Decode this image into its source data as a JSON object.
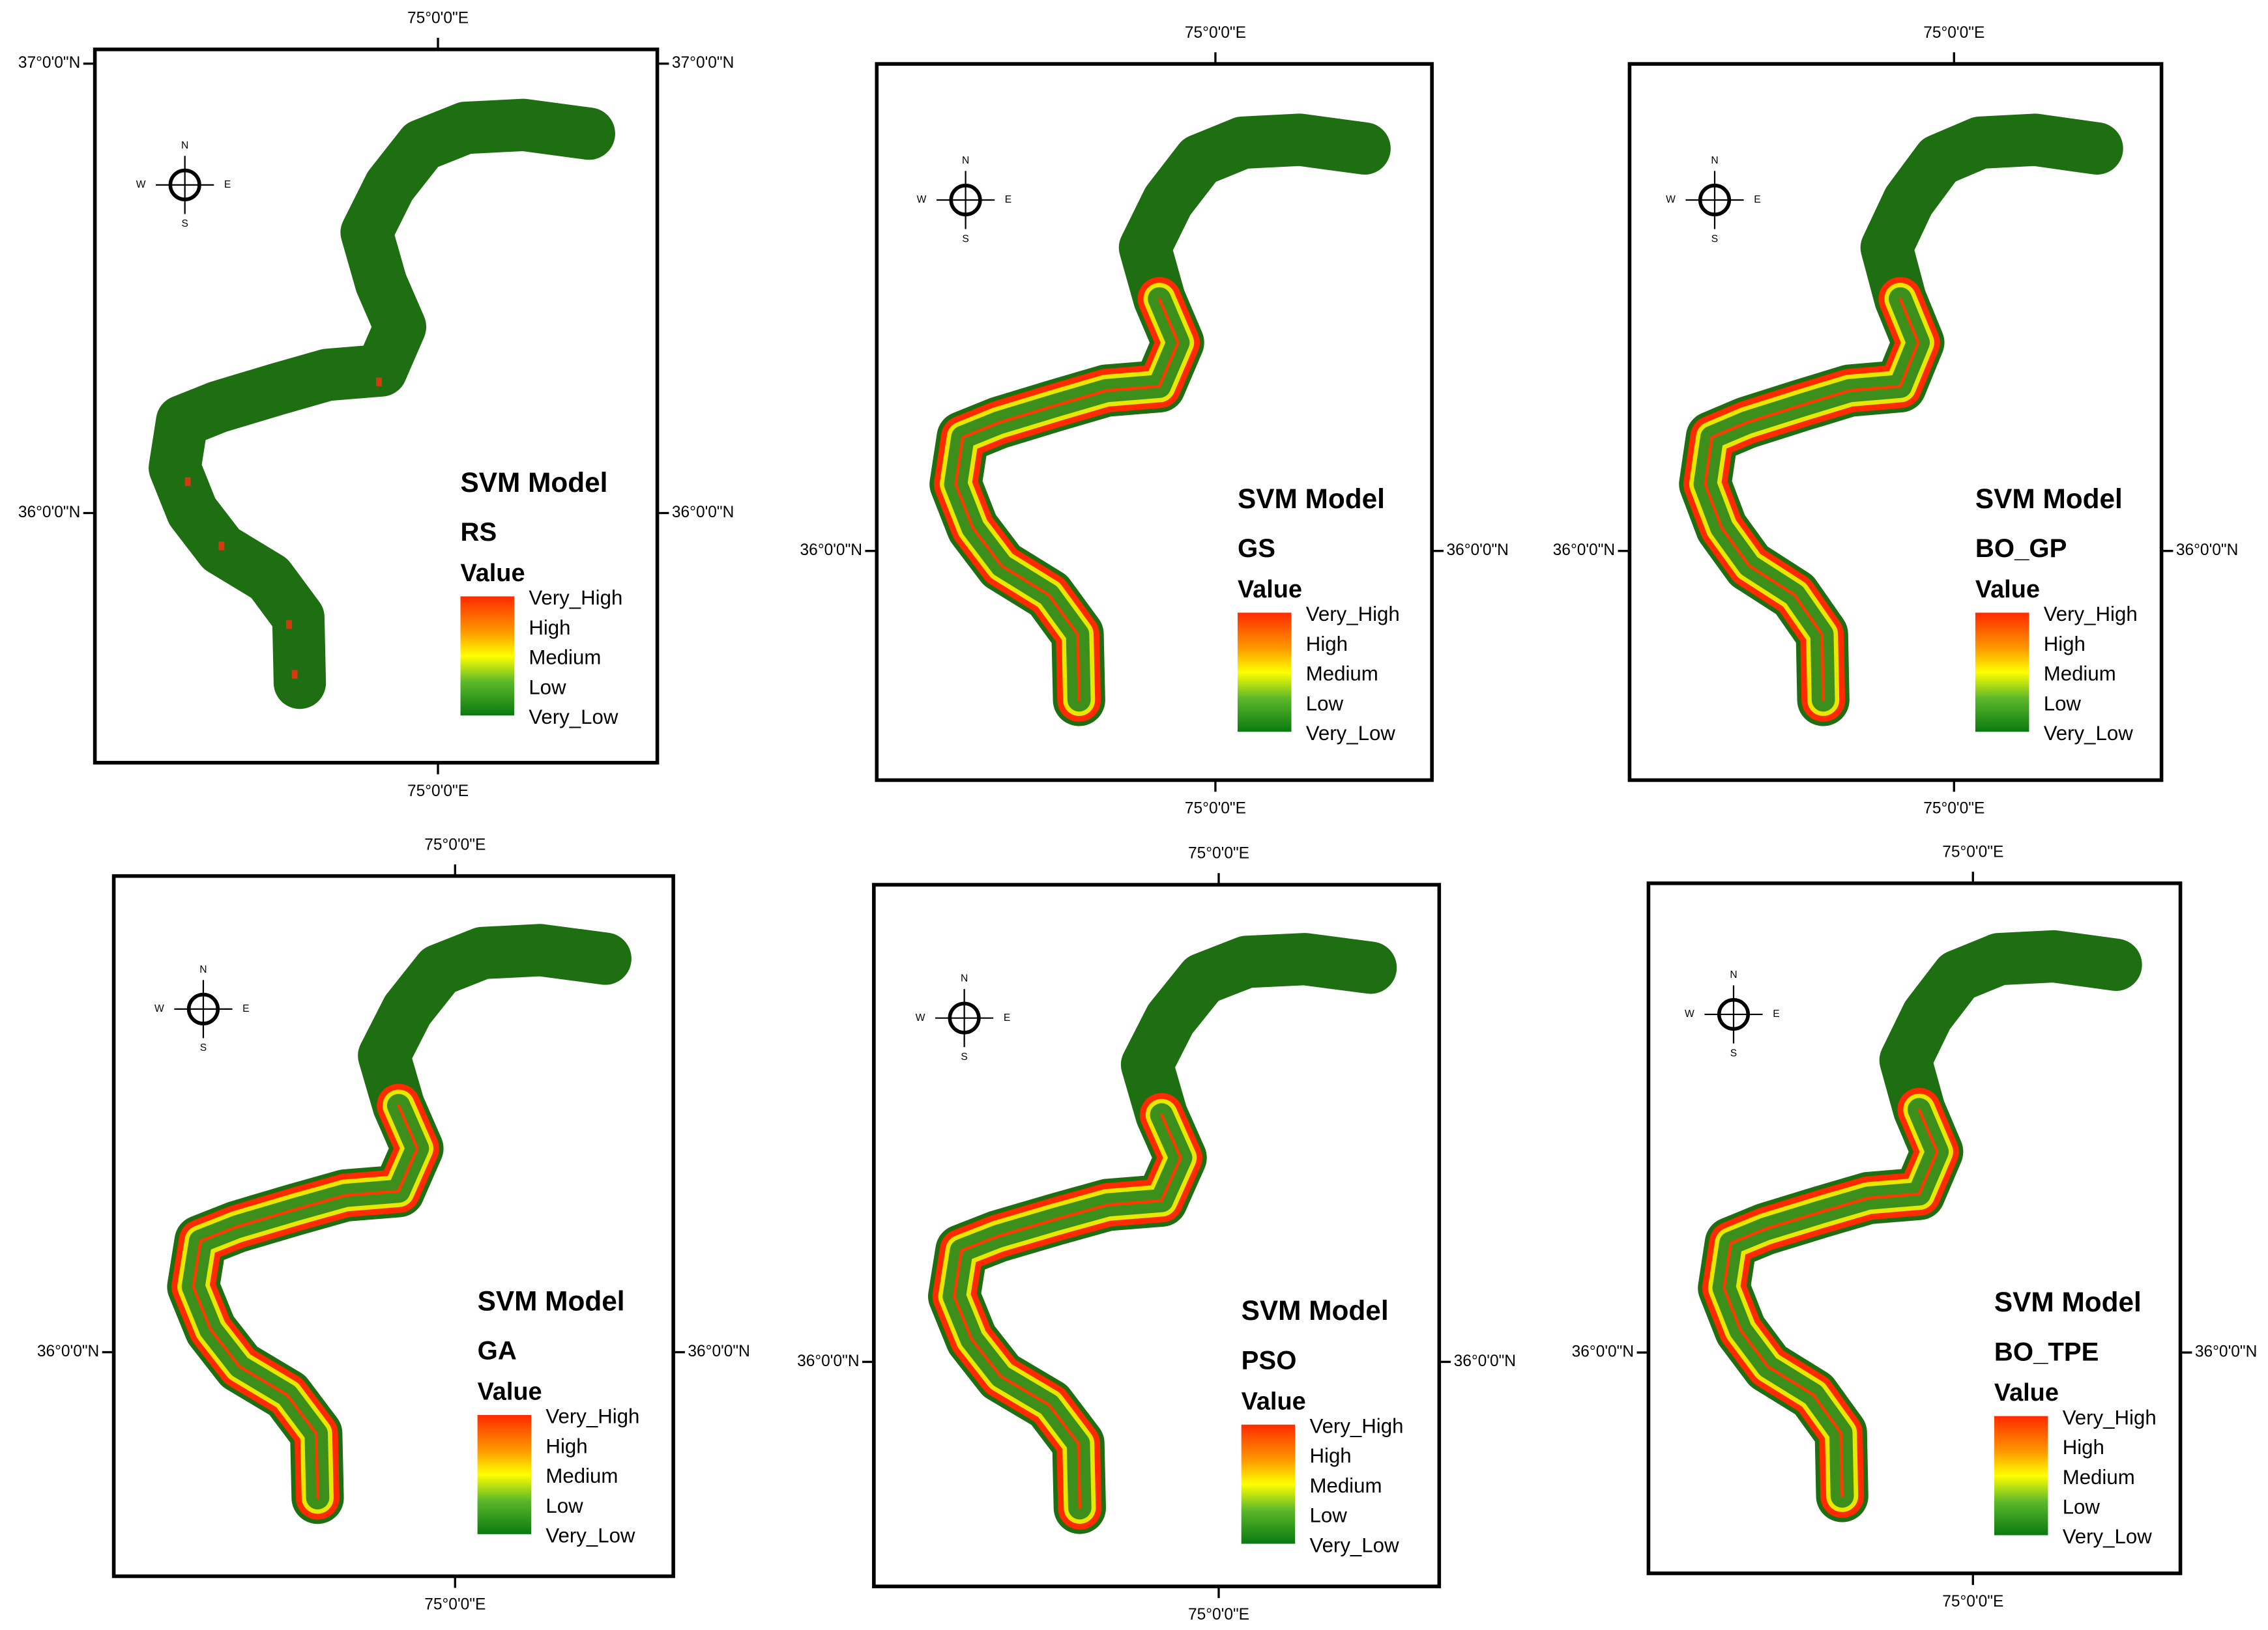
{
  "panels": [
    {
      "title": "SVM Model",
      "model": "RS",
      "value_label": "Value",
      "legend": [
        "Very_High",
        "High",
        "Medium",
        "Low",
        "Very_Low"
      ],
      "compass": [
        "N",
        "E",
        "S",
        "W"
      ],
      "top_lon": "75°0'0\"E",
      "bottom_lon": "75°0'0\"E",
      "left_lat": [
        "37°0'0\"N",
        "36°0'0\"N"
      ],
      "right_lat": [
        "37°0'0\"N",
        "36°0'0\"N"
      ]
    },
    {
      "title": "SVM Model",
      "model": "GS",
      "value_label": "Value",
      "legend": [
        "Very_High",
        "High",
        "Medium",
        "Low",
        "Very_Low"
      ],
      "compass": [
        "N",
        "E",
        "S",
        "W"
      ],
      "top_lon": "75°0'0\"E",
      "bottom_lon": "75°0'0\"E",
      "left_lat": [
        "36°0'0\"N"
      ],
      "right_lat": [
        "36°0'0\"N"
      ]
    },
    {
      "title": "SVM Model",
      "model": "BO_GP",
      "value_label": "Value",
      "legend": [
        "Very_High",
        "High",
        "Medium",
        "Low",
        "Very_Low"
      ],
      "compass": [
        "N",
        "E",
        "S",
        "W"
      ],
      "top_lon": "75°0'0\"E",
      "bottom_lon": "75°0'0\"E",
      "left_lat": [
        "36°0'0\"N"
      ],
      "right_lat": [
        "36°0'0\"N"
      ]
    },
    {
      "title": "SVM Model",
      "model": "GA",
      "value_label": "Value",
      "legend": [
        "Very_High",
        "High",
        "Medium",
        "Low",
        "Very_Low"
      ],
      "compass": [
        "N",
        "E",
        "S",
        "W"
      ],
      "top_lon": "75°0'0\"E",
      "bottom_lon": "75°0'0\"E",
      "left_lat": [
        "36°0'0\"N"
      ],
      "right_lat": [
        "36°0'0\"N"
      ]
    },
    {
      "title": "SVM Model",
      "model": "PSO",
      "value_label": "Value",
      "legend": [
        "Very_High",
        "High",
        "Medium",
        "Low",
        "Very_Low"
      ],
      "compass": [
        "N",
        "E",
        "S",
        "W"
      ],
      "top_lon": "75°0'0\"E",
      "bottom_lon": "75°0'0\"E",
      "left_lat": [
        "36°0'0\"N"
      ],
      "right_lat": [
        "36°0'0\"N"
      ]
    },
    {
      "title": "SVM Model",
      "model": "BO_TPE",
      "value_label": "Value",
      "legend": [
        "Very_High",
        "High",
        "Medium",
        "Low",
        "Very_Low"
      ],
      "compass": [
        "N",
        "E",
        "S",
        "W"
      ],
      "top_lon": "75°0'0\"E",
      "bottom_lon": "75°0'0\"E",
      "left_lat": [
        "36°0'0\"N"
      ],
      "right_lat": [
        "36°0'0\"N"
      ]
    }
  ]
}
